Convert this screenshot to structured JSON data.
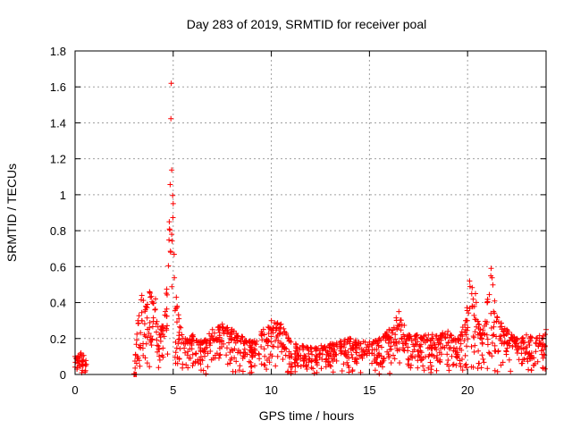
{
  "chart_data": {
    "type": "scatter",
    "title": "Day 283 of 2019, SRMTID for receiver poal",
    "xlabel": "GPS time / hours",
    "ylabel": "SRMTID / TECUs",
    "xlim": [
      0,
      24
    ],
    "ylim": [
      0,
      1.8
    ],
    "x_ticks": [
      "0",
      "5",
      "10",
      "15",
      "20"
    ],
    "x_tick_values": [
      0,
      5,
      10,
      15,
      20
    ],
    "y_ticks": [
      "0",
      "0.2",
      "0.4",
      "0.6",
      "0.8",
      "1",
      "1.2",
      "1.4",
      "1.6",
      "1.8"
    ],
    "y_tick_values": [
      0,
      0.2,
      0.4,
      0.6,
      0.8,
      1.0,
      1.2,
      1.4,
      1.6,
      1.8
    ],
    "grid": true,
    "marker": "+",
    "series": [
      {
        "name": "SRMTID",
        "color": "#ff0000",
        "envelope": [
          [
            0.0,
            0.1
          ],
          [
            0.3,
            0.12
          ],
          [
            0.6,
            0.09
          ],
          [
            3.0,
            0.0
          ],
          [
            3.2,
            0.3
          ],
          [
            3.4,
            0.44
          ],
          [
            3.6,
            0.38
          ],
          [
            3.8,
            0.46
          ],
          [
            4.1,
            0.42
          ],
          [
            4.3,
            0.22
          ],
          [
            4.6,
            0.35
          ],
          [
            4.8,
            0.85
          ],
          [
            4.9,
            1.62
          ],
          [
            5.0,
            0.95
          ],
          [
            5.2,
            0.38
          ],
          [
            5.5,
            0.2
          ],
          [
            6.0,
            0.22
          ],
          [
            6.5,
            0.18
          ],
          [
            7.0,
            0.25
          ],
          [
            7.5,
            0.28
          ],
          [
            8.0,
            0.25
          ],
          [
            9.0,
            0.18
          ],
          [
            10.0,
            0.3
          ],
          [
            10.5,
            0.28
          ],
          [
            11.0,
            0.18
          ],
          [
            12.0,
            0.15
          ],
          [
            13.0,
            0.17
          ],
          [
            14.0,
            0.2
          ],
          [
            15.0,
            0.18
          ],
          [
            15.5,
            0.2
          ],
          [
            16.0,
            0.25
          ],
          [
            16.5,
            0.35
          ],
          [
            17.0,
            0.22
          ],
          [
            18.0,
            0.22
          ],
          [
            19.0,
            0.24
          ],
          [
            19.5,
            0.2
          ],
          [
            19.9,
            0.3
          ],
          [
            20.1,
            0.52
          ],
          [
            20.4,
            0.45
          ],
          [
            20.7,
            0.22
          ],
          [
            21.0,
            0.4
          ],
          [
            21.2,
            0.59
          ],
          [
            21.5,
            0.32
          ],
          [
            22.0,
            0.25
          ],
          [
            22.5,
            0.2
          ],
          [
            23.0,
            0.22
          ],
          [
            23.5,
            0.2
          ],
          [
            24.0,
            0.25
          ]
        ]
      }
    ]
  }
}
